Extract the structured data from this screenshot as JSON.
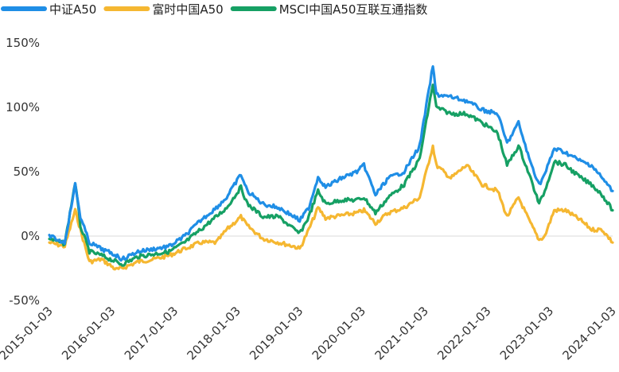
{
  "chart_data": {
    "type": "line",
    "title": "",
    "xlabel": "",
    "ylabel": "",
    "legend_position": "top-left",
    "grid": false,
    "y_format": "percent",
    "ylim": [
      -50,
      150
    ],
    "yticks": [
      -50,
      0,
      50,
      100,
      150
    ],
    "ytick_labels": [
      "-50%",
      "0%",
      "50%",
      "100%",
      "150%"
    ],
    "xlim": [
      "2015-01-03",
      "2024-01-03"
    ],
    "xtick_labels": [
      "2015-01-03",
      "2016-01-03",
      "2017-01-03",
      "2018-01-03",
      "2019-01-03",
      "2020-01-03",
      "2021-01-03",
      "2022-01-03",
      "2023-01-03",
      "2024-01-03"
    ],
    "x": [
      "2015-01-03",
      "2015-04-03",
      "2015-06-03",
      "2015-07-03",
      "2015-08-25",
      "2015-11-03",
      "2016-01-28",
      "2016-03-03",
      "2016-06-03",
      "2016-09-03",
      "2016-12-03",
      "2017-03-03",
      "2017-06-03",
      "2017-09-03",
      "2017-11-03",
      "2018-01-25",
      "2018-03-03",
      "2018-06-03",
      "2018-09-03",
      "2018-12-03",
      "2019-01-03",
      "2019-02-25",
      "2019-04-20",
      "2019-06-03",
      "2019-09-03",
      "2019-12-03",
      "2020-01-13",
      "2020-03-20",
      "2020-06-03",
      "2020-09-03",
      "2020-12-03",
      "2021-02-18",
      "2021-03-10",
      "2021-06-03",
      "2021-09-03",
      "2021-12-03",
      "2022-03-03",
      "2022-04-27",
      "2022-07-03",
      "2022-09-03",
      "2022-10-31",
      "2022-12-03",
      "2023-01-27",
      "2023-04-03",
      "2023-07-03",
      "2023-09-03",
      "2023-11-03",
      "2024-01-03"
    ],
    "series": [
      {
        "name": "中证A50",
        "color": "#1f8ee6",
        "values": [
          0,
          -5,
          40,
          15,
          -5,
          -10,
          -15,
          -18,
          -12,
          -10,
          -8,
          0,
          12,
          22,
          30,
          48,
          35,
          25,
          22,
          15,
          12,
          22,
          46,
          38,
          45,
          50,
          55,
          32,
          45,
          50,
          70,
          132,
          110,
          108,
          105,
          98,
          95,
          72,
          88,
          60,
          40,
          48,
          68,
          65,
          58,
          55,
          45,
          35
        ]
      },
      {
        "name": "富时中国A50",
        "color": "#f5b731",
        "values": [
          -5,
          -8,
          20,
          5,
          -20,
          -18,
          -26,
          -25,
          -20,
          -18,
          -15,
          -10,
          -5,
          -5,
          5,
          15,
          8,
          -2,
          -5,
          -8,
          -10,
          5,
          22,
          14,
          16,
          18,
          20,
          10,
          18,
          22,
          30,
          70,
          55,
          45,
          55,
          40,
          35,
          15,
          30,
          12,
          -3,
          0,
          20,
          20,
          12,
          5,
          5,
          -5
        ]
      },
      {
        "name": "MSCI中国A50互联互通指数",
        "color": "#16a064",
        "values": [
          -2,
          -6,
          42,
          8,
          -12,
          -15,
          -20,
          -22,
          -16,
          -14,
          -12,
          -5,
          5,
          15,
          22,
          38,
          25,
          15,
          15,
          5,
          2,
          15,
          35,
          25,
          28,
          28,
          30,
          18,
          30,
          40,
          60,
          118,
          100,
          95,
          95,
          88,
          80,
          55,
          70,
          48,
          25,
          35,
          58,
          55,
          45,
          40,
          32,
          20
        ]
      }
    ]
  }
}
